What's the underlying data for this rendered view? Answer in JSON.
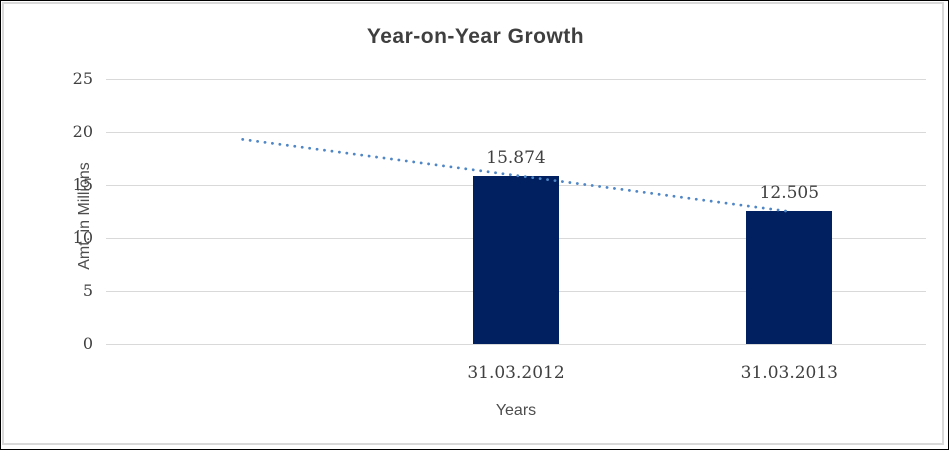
{
  "chart_data": {
    "type": "bar",
    "title": "Year-on-Year Growth",
    "categories": [
      "31.03.2012",
      "31.03.2013"
    ],
    "values": [
      15.874,
      12.505
    ],
    "data_labels": [
      "15.874",
      "12.505"
    ],
    "xlabel": "Years",
    "ylabel": "Amt. in Millions",
    "ylim": [
      0,
      25
    ],
    "yticks": [
      0,
      5,
      10,
      15,
      20,
      25
    ],
    "grid": true,
    "legend": false,
    "bar_color": "#002060",
    "gridline_color": "#d9d9d9",
    "text_color": "#404040",
    "title_color": "#3f3f3f",
    "trendline": {
      "style": "dotted",
      "color": "#4f86c6",
      "start_value": 19.3,
      "end_value": 12.5
    }
  }
}
